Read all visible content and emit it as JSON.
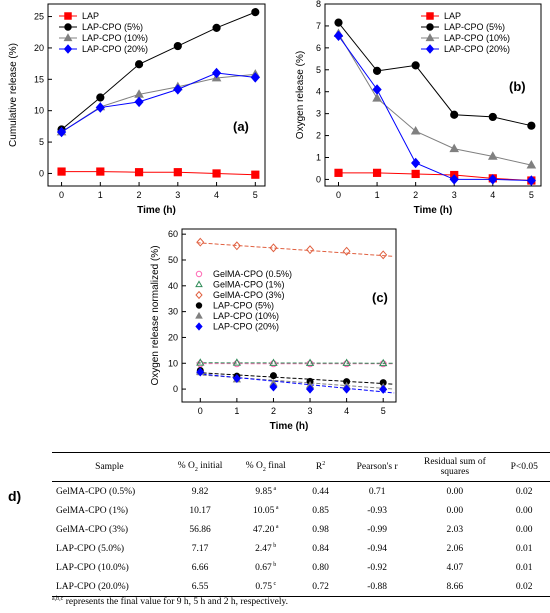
{
  "chart_data": [
    {
      "panel": "(a)",
      "type": "line",
      "xlabel": "Time (h)",
      "ylabel": "Cumulative release (%)",
      "xlim": [
        -0.35,
        5.25
      ],
      "ylim": [
        -2,
        27
      ],
      "xticks": [
        0,
        1,
        2,
        3,
        4,
        5
      ],
      "yticks": [
        0,
        5,
        10,
        15,
        20,
        25
      ],
      "legend": "top-left",
      "series": [
        {
          "name": "LAP",
          "color": "#ff0000",
          "marker": "square",
          "x": [
            0,
            1,
            2,
            3,
            4,
            5
          ],
          "y": [
            0.3,
            0.3,
            0.2,
            0.2,
            0.0,
            -0.2
          ]
        },
        {
          "name": "LAP-CPO (5%)",
          "color": "#000000",
          "marker": "circle",
          "x": [
            0,
            1,
            2,
            3,
            4,
            5
          ],
          "y": [
            7.0,
            12.1,
            17.4,
            20.3,
            23.2,
            25.7
          ]
        },
        {
          "name": "LAP-CPO (10%)",
          "color": "#808080",
          "marker": "triangle",
          "x": [
            0,
            1,
            2,
            3,
            4,
            5
          ],
          "y": [
            6.6,
            10.6,
            12.6,
            13.8,
            15.2,
            15.8
          ]
        },
        {
          "name": "LAP-CPO (20%)",
          "color": "#0000ff",
          "marker": "diamond",
          "x": [
            0,
            1,
            2,
            3,
            4,
            5
          ],
          "y": [
            6.6,
            10.5,
            11.4,
            13.4,
            16.0,
            15.3
          ]
        }
      ]
    },
    {
      "panel": "(b)",
      "type": "line",
      "xlabel": "Time (h)",
      "ylabel": "Oxygen release (%)",
      "xlim": [
        -0.35,
        5.25
      ],
      "ylim": [
        -0.3,
        8
      ],
      "xticks": [
        0,
        1,
        2,
        3,
        4,
        5
      ],
      "yticks": [
        0,
        1,
        2,
        3,
        4,
        5,
        6,
        7,
        8
      ],
      "legend": "top-right",
      "series": [
        {
          "name": "LAP",
          "color": "#ff0000",
          "marker": "square",
          "x": [
            0,
            1,
            2,
            3,
            4,
            5
          ],
          "y": [
            0.3,
            0.3,
            0.25,
            0.2,
            0.05,
            -0.05
          ]
        },
        {
          "name": "LAP-CPO (5%)",
          "color": "#000000",
          "marker": "circle",
          "x": [
            0,
            1,
            2,
            3,
            4,
            5
          ],
          "y": [
            7.15,
            4.95,
            5.2,
            2.95,
            2.85,
            2.45
          ]
        },
        {
          "name": "LAP-CPO (10%)",
          "color": "#808080",
          "marker": "triangle",
          "x": [
            0,
            1,
            2,
            3,
            4,
            5
          ],
          "y": [
            6.65,
            3.7,
            2.2,
            1.4,
            1.05,
            0.65
          ]
        },
        {
          "name": "LAP-CPO (20%)",
          "color": "#0000ff",
          "marker": "diamond",
          "x": [
            0,
            1,
            2,
            3,
            4,
            5
          ],
          "y": [
            6.55,
            4.1,
            0.75,
            0.0,
            0.0,
            -0.05
          ]
        }
      ]
    },
    {
      "panel": "(c)",
      "type": "scatter",
      "xlabel": "Time (h)",
      "ylabel": "Oxygen release normalized (%)",
      "xlim": [
        -0.5,
        5.35
      ],
      "ylim": [
        -5,
        62
      ],
      "xticks": [
        0,
        1,
        2,
        3,
        4,
        5
      ],
      "yticks": [
        0,
        10,
        20,
        30,
        40,
        50,
        60
      ],
      "legend": "middle-left",
      "series": [
        {
          "name": "GelMA-CPO (0.5%)",
          "color": "#ff69b4",
          "marker": "circle-open",
          "x": [
            0,
            1,
            2,
            3,
            4,
            5
          ],
          "y": [
            9.8,
            9.8,
            9.8,
            9.8,
            9.8,
            9.8
          ]
        },
        {
          "name": "GelMA-CPO (1%)",
          "color": "#2e8b57",
          "marker": "triangle-open",
          "x": [
            0,
            1,
            2,
            3,
            4,
            5
          ],
          "y": [
            10.2,
            10.2,
            10.1,
            10.1,
            10.1,
            10.0
          ]
        },
        {
          "name": "GelMA-CPO (3%)",
          "color": "#e06040",
          "marker": "diamond-open",
          "x": [
            0,
            1,
            2,
            3,
            4,
            5
          ],
          "y": [
            56.9,
            55.5,
            54.7,
            54.0,
            53.4,
            52.0
          ]
        },
        {
          "name": "LAP-CPO (5%)",
          "color": "#000000",
          "marker": "circle",
          "x": [
            0,
            1,
            2,
            3,
            4,
            5
          ],
          "y": [
            7.2,
            5.0,
            5.2,
            3.0,
            2.9,
            2.5
          ]
        },
        {
          "name": "LAP-CPO (10%)",
          "color": "#808080",
          "marker": "triangle",
          "x": [
            0,
            1,
            2,
            3,
            4,
            5
          ],
          "y": [
            6.7,
            3.7,
            2.2,
            1.4,
            1.1,
            0.7
          ]
        },
        {
          "name": "LAP-CPO (20%)",
          "color": "#0000ff",
          "marker": "diamond",
          "x": [
            0,
            1,
            2,
            3,
            4,
            5
          ],
          "y": [
            6.6,
            4.1,
            0.8,
            0.0,
            0.0,
            -0.1
          ]
        }
      ],
      "fits": [
        {
          "series": "GelMA-CPO (0.5%)",
          "color": "#ff69b4",
          "x": [
            -0.1,
            5.3
          ],
          "y": [
            9.85,
            9.8
          ]
        },
        {
          "series": "GelMA-CPO (1%)",
          "color": "#2e8b57",
          "x": [
            -0.1,
            5.3
          ],
          "y": [
            10.2,
            10.0
          ]
        },
        {
          "series": "GelMA-CPO (3%)",
          "color": "#e06040",
          "x": [
            -0.1,
            5.3
          ],
          "y": [
            56.7,
            51.4
          ]
        },
        {
          "series": "LAP-CPO (5%)",
          "color": "#000000",
          "x": [
            -0.1,
            5.3
          ],
          "y": [
            6.4,
            1.9
          ]
        },
        {
          "series": "LAP-CPO (10%)",
          "color": "#808080",
          "x": [
            -0.1,
            5.3
          ],
          "y": [
            5.6,
            0.0
          ]
        },
        {
          "series": "LAP-CPO (20%)",
          "color": "#0000ff",
          "x": [
            -0.1,
            5.3
          ],
          "y": [
            6.0,
            -1.5
          ]
        }
      ]
    },
    {
      "panel": "d)",
      "type": "table",
      "columns": [
        "Sample",
        "% O2 initial",
        "% O2 final",
        "R2",
        "Pearson's r",
        "Residual sum of squares",
        "P<0.05"
      ],
      "rows": [
        [
          "GelMA-CPO (0.5%)",
          "9.82",
          "9.85",
          "0.44",
          "0.71",
          "0.00",
          "0.02"
        ],
        [
          "GelMA-CPO (1%)",
          "10.17",
          "10.05",
          "0.85",
          "-0.93",
          "0.00",
          "0.00"
        ],
        [
          "GelMA-CPO (3%)",
          "56.86",
          "47.20",
          "0.98",
          "-0.99",
          "2.03",
          "0.00"
        ],
        [
          "LAP-CPO (5.0%)",
          "7.17",
          "2.47",
          "0.84",
          "-0.94",
          "2.06",
          "0.01"
        ],
        [
          "LAP-CPO (10.0%)",
          "6.66",
          "0.67",
          "0.80",
          "-0.92",
          "4.07",
          "0.01"
        ],
        [
          "LAP-CPO (20.0%)",
          "6.55",
          "0.75",
          "0.72",
          "-0.88",
          "8.66",
          "0.02"
        ]
      ],
      "final_superscripts": [
        "a",
        "a",
        "a",
        "b",
        "b",
        "c"
      ],
      "footnote_superscript": "a,b,c",
      "footnote": "represents the final value for 9 h, 5 h and 2 h, respectively."
    }
  ]
}
